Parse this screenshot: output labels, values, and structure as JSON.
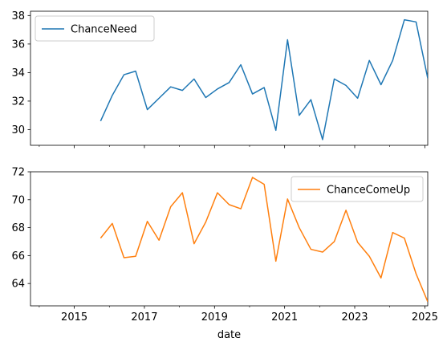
{
  "chart_data": [
    {
      "type": "line",
      "series": [
        {
          "name": "ChanceNeed",
          "color": "#1f77b4",
          "x": [
            "2015-10",
            "2016-02",
            "2016-06",
            "2016-10",
            "2017-02",
            "2017-06",
            "2017-10",
            "2018-02",
            "2018-06",
            "2018-10",
            "2019-02",
            "2019-06",
            "2019-10",
            "2020-02",
            "2020-06",
            "2020-10",
            "2021-02",
            "2021-06",
            "2021-10",
            "2022-02",
            "2022-06",
            "2022-10",
            "2023-02",
            "2023-06",
            "2023-10",
            "2024-02",
            "2024-06",
            "2024-10",
            "2025-02"
          ],
          "values": [
            30.6,
            32.4,
            33.85,
            34.1,
            31.4,
            32.2,
            33.0,
            32.75,
            33.55,
            32.25,
            32.85,
            33.3,
            34.55,
            32.5,
            32.95,
            29.95,
            36.3,
            31.0,
            32.1,
            29.3,
            33.55,
            33.1,
            32.2,
            34.85,
            33.15,
            34.85,
            37.7,
            37.55,
            33.6
          ]
        }
      ],
      "ylim": [
        28.9,
        38.3
      ],
      "yticks": [
        30,
        32,
        34,
        36,
        38
      ],
      "legend": "upper-left",
      "xlabel": ""
    },
    {
      "type": "line",
      "series": [
        {
          "name": "ChanceComeUp",
          "color": "#ff7f0e",
          "x": [
            "2015-10",
            "2016-02",
            "2016-06",
            "2016-10",
            "2017-02",
            "2017-06",
            "2017-10",
            "2018-02",
            "2018-06",
            "2018-10",
            "2019-02",
            "2019-06",
            "2019-10",
            "2020-02",
            "2020-06",
            "2020-10",
            "2021-02",
            "2021-06",
            "2021-10",
            "2022-02",
            "2022-06",
            "2022-10",
            "2023-02",
            "2023-06",
            "2023-10",
            "2024-02",
            "2024-06",
            "2024-10",
            "2025-02"
          ],
          "values": [
            67.25,
            68.3,
            65.85,
            65.95,
            68.45,
            67.1,
            69.5,
            70.5,
            66.85,
            68.4,
            70.5,
            69.65,
            69.35,
            71.6,
            71.1,
            65.6,
            70.05,
            68.0,
            66.45,
            66.25,
            67.0,
            69.25,
            66.95,
            65.95,
            64.4,
            67.65,
            67.25,
            64.7,
            62.7
          ]
        }
      ],
      "ylim": [
        62.4,
        72.0
      ],
      "yticks": [
        64,
        66,
        68,
        70,
        72
      ],
      "legend": "upper-right",
      "xlabel": "date"
    }
  ],
  "x_axis": {
    "range": [
      "2013-10",
      "2025-02"
    ],
    "major_ticks": [
      "2015",
      "2017",
      "2019",
      "2021",
      "2023",
      "2025"
    ],
    "minor_ticks": [
      "2014",
      "2016",
      "2018",
      "2020",
      "2022",
      "2024"
    ]
  }
}
